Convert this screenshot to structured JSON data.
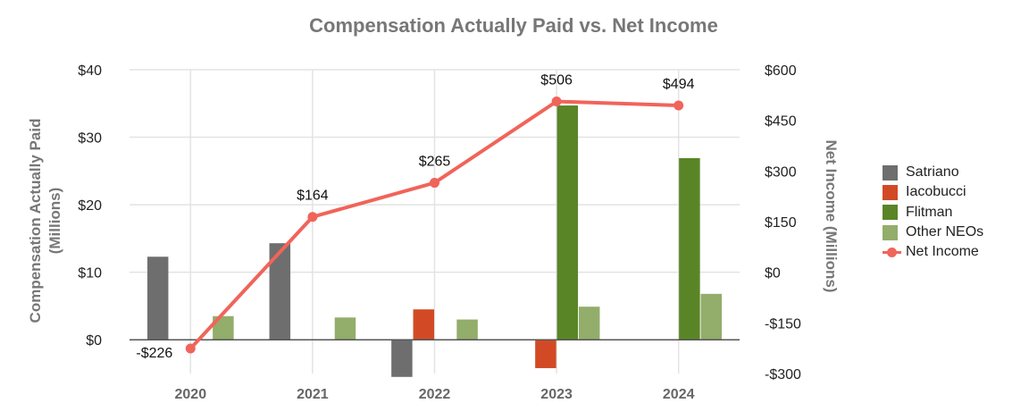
{
  "chart_data": {
    "type": "bar+line",
    "title": "Compensation Actually Paid vs. Net Income",
    "categories": [
      "2020",
      "2021",
      "2022",
      "2023",
      "2024"
    ],
    "ylabel_left_line1": "Compensation Actually Paid",
    "ylabel_left_line2": "(Millions)",
    "ylabel_right": "Net Income (Millions)",
    "left_axis": {
      "ylim": [
        -5,
        40
      ],
      "ticks": [
        0,
        10,
        20,
        30,
        40
      ],
      "tick_labels": [
        "$0",
        "$10",
        "$20",
        "$30",
        "$40"
      ]
    },
    "right_axis": {
      "ylim": [
        -300,
        600
      ],
      "ticks": [
        -300,
        -150,
        0,
        150,
        300,
        450,
        600
      ],
      "tick_labels": [
        "-$300",
        "-$150",
        "$0",
        "$150",
        "$300",
        "$450",
        "$600"
      ]
    },
    "bar_series": [
      {
        "name": "Satriano",
        "color": "#6e6e6e",
        "values": [
          12.3,
          14.3,
          -5.5,
          null,
          null
        ]
      },
      {
        "name": "Iacobucci",
        "color": "#d24a25",
        "values": [
          null,
          null,
          4.5,
          -4.2,
          null
        ]
      },
      {
        "name": "Flitman",
        "color": "#5a8527",
        "values": [
          null,
          null,
          null,
          34.7,
          26.9
        ]
      },
      {
        "name": "Other NEOs",
        "color": "#93ad6b",
        "values": [
          3.5,
          3.3,
          3.0,
          4.9,
          6.8
        ]
      }
    ],
    "line_series": {
      "name": "Net Income",
      "color": "#f0645a",
      "values": [
        -226,
        164,
        265,
        506,
        494
      ],
      "labels": [
        "-$226",
        "$164",
        "$265",
        "$506",
        "$494"
      ]
    },
    "grid": true,
    "legend": "right"
  }
}
